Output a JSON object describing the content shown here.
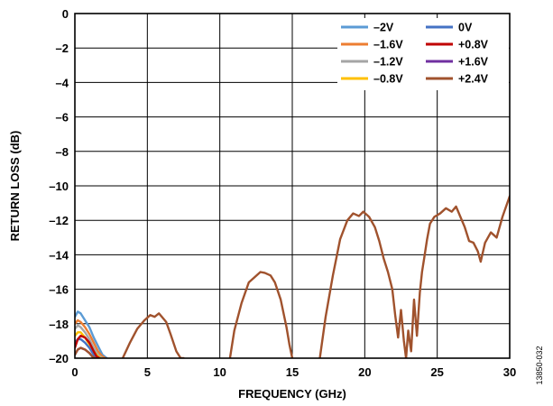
{
  "figure_id": "13850-032",
  "chart_data": {
    "type": "line",
    "title": "",
    "xlabel": "FREQUENCY (GHz)",
    "ylabel": "RETURN LOSS (dB)",
    "xlim": [
      0,
      30
    ],
    "ylim": [
      -20,
      0
    ],
    "x_ticks": [
      0,
      5,
      10,
      15,
      20,
      25,
      30
    ],
    "y_ticks": [
      0,
      -2,
      -4,
      -6,
      -8,
      -10,
      -12,
      -14,
      -16,
      -18,
      -20
    ],
    "x_tick_labels": [
      "0",
      "5",
      "10",
      "15",
      "20",
      "25",
      "30"
    ],
    "y_tick_labels": [
      "0",
      "–2",
      "–4",
      "–6",
      "–8",
      "–10",
      "–12",
      "–14",
      "–16",
      "–18",
      "–20"
    ],
    "grid": true,
    "legend_position": "top-right",
    "legend_columns": 2,
    "series": [
      {
        "name": "–2V",
        "color": "#5B9BD5",
        "x": [
          0,
          0.2,
          0.4,
          0.7,
          1.0,
          1.3,
          1.6,
          1.9,
          2.2
        ],
        "y": [
          -17.6,
          -17.3,
          -17.4,
          -17.8,
          -18.2,
          -18.8,
          -19.3,
          -19.8,
          -20.0
        ]
      },
      {
        "name": "–1.6V",
        "color": "#ED7D31",
        "x": [
          0,
          0.2,
          0.4,
          0.7,
          1.0,
          1.3,
          1.6,
          1.9,
          2.1
        ],
        "y": [
          -18.0,
          -17.8,
          -17.9,
          -18.2,
          -18.6,
          -19.1,
          -19.6,
          -19.9,
          -20.0
        ]
      },
      {
        "name": "–1.2V",
        "color": "#A5A5A5",
        "x": [
          0,
          0.2,
          0.4,
          0.7,
          1.0,
          1.3,
          1.6,
          1.9
        ],
        "y": [
          -18.3,
          -18.1,
          -18.2,
          -18.5,
          -18.9,
          -19.4,
          -19.8,
          -20.0
        ]
      },
      {
        "name": "–0.8V",
        "color": "#FFC000",
        "x": [
          0,
          0.2,
          0.4,
          0.7,
          1.0,
          1.3,
          1.6,
          1.8
        ],
        "y": [
          -18.7,
          -18.5,
          -18.5,
          -18.8,
          -19.2,
          -19.6,
          -19.9,
          -20.0
        ]
      },
      {
        "name": "0V",
        "color": "#4472C4",
        "x": [
          0,
          0.2,
          0.4,
          0.7,
          1.0,
          1.3,
          1.5,
          1.7
        ],
        "y": [
          -19.1,
          -18.9,
          -18.9,
          -19.1,
          -19.4,
          -19.8,
          -19.95,
          -20.0
        ]
      },
      {
        "name": "+0.8V",
        "color": "#C00000",
        "x": [
          0,
          0.2,
          0.4,
          0.7,
          1.0,
          1.3,
          1.5,
          1.7
        ],
        "y": [
          -19.4,
          -18.9,
          -18.7,
          -18.8,
          -19.1,
          -19.6,
          -19.9,
          -20.0
        ]
      },
      {
        "name": "+1.6V",
        "color": "#7030A0",
        "x": [
          0,
          0.2,
          0.4,
          0.7,
          1.0,
          1.2,
          1.4
        ],
        "y": [
          -19.8,
          -19.5,
          -19.4,
          -19.5,
          -19.7,
          -19.9,
          -20.0
        ]
      },
      {
        "name": "+2.4V",
        "color": "#A0522D",
        "x": [
          0,
          0.2,
          0.4,
          0.7,
          1.0,
          1.2,
          1.4,
          3.3,
          3.8,
          4.3,
          4.8,
          5.2,
          5.5,
          5.8,
          6.0,
          6.3,
          6.6,
          7.0,
          7.3,
          7.5,
          10.7,
          11.0,
          11.5,
          12.0,
          12.4,
          12.8,
          13.1,
          13.5,
          13.8,
          14.2,
          14.6,
          14.8,
          15.0,
          16.9,
          17.3,
          17.8,
          18.3,
          18.8,
          19.2,
          19.6,
          19.9,
          20.3,
          20.7,
          21.0,
          21.3,
          21.6,
          21.9,
          22.1,
          22.3,
          22.5,
          22.7,
          22.85,
          23.0,
          23.2,
          23.4,
          23.6,
          23.8,
          23.95,
          24.1,
          24.3,
          24.5,
          24.8,
          25.2,
          25.6,
          26.0,
          26.3,
          26.6,
          26.9,
          27.2,
          27.5,
          27.8,
          28.0,
          28.3,
          28.7,
          29.1,
          29.5,
          30.0
        ],
        "y": [
          -19.8,
          -19.5,
          -19.4,
          -19.5,
          -19.7,
          -19.9,
          -20.0,
          -20.0,
          -19.1,
          -18.3,
          -17.8,
          -17.5,
          -17.6,
          -17.4,
          -17.6,
          -17.9,
          -18.6,
          -19.6,
          -20.0,
          -20.0,
          -20.0,
          -18.4,
          -16.8,
          -15.6,
          -15.3,
          -15.0,
          -15.05,
          -15.2,
          -15.6,
          -16.6,
          -18.2,
          -19.2,
          -20.0,
          -20.0,
          -17.6,
          -15.2,
          -13.1,
          -12.0,
          -11.6,
          -11.75,
          -11.5,
          -11.8,
          -12.4,
          -13.2,
          -14.2,
          -15.0,
          -16.0,
          -17.5,
          -18.8,
          -17.2,
          -19.0,
          -20.0,
          -18.4,
          -19.6,
          -16.6,
          -18.7,
          -16.2,
          -15.0,
          -14.2,
          -13.1,
          -12.2,
          -11.8,
          -11.6,
          -11.3,
          -11.5,
          -11.2,
          -11.8,
          -12.4,
          -13.2,
          -13.3,
          -13.8,
          -14.4,
          -13.3,
          -12.7,
          -13.0,
          -11.8,
          -10.6
        ]
      }
    ]
  }
}
